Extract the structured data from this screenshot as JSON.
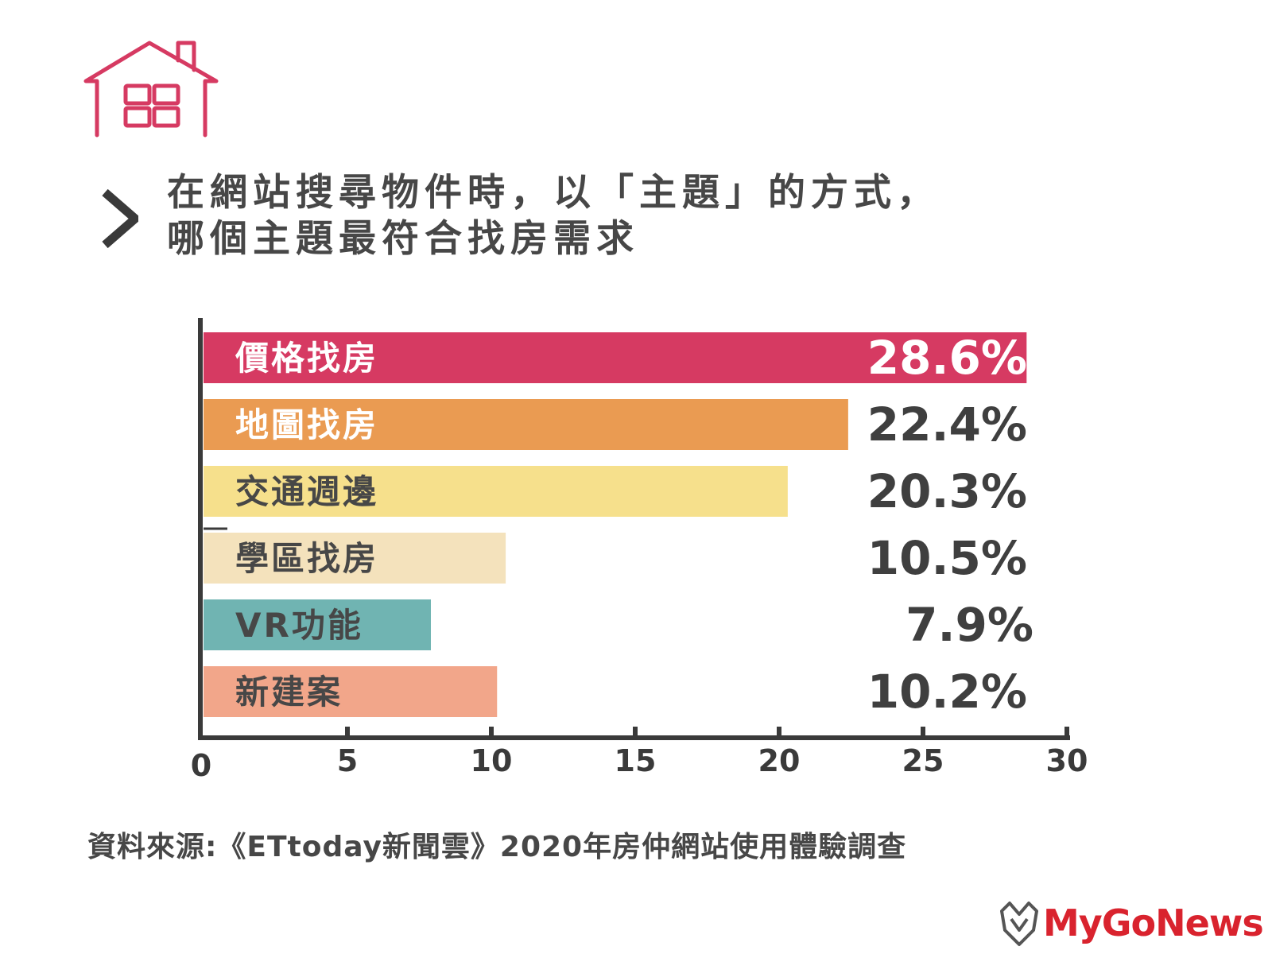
{
  "header": {
    "title_line1": "在網站搜尋物件時，以「主題」的方式，",
    "title_line2": "哪個主題最符合找房需求",
    "icons": [
      "house-icon",
      "chevron-right-icon"
    ],
    "accent_color": "#d63a62"
  },
  "chart_data": {
    "type": "bar",
    "orientation": "horizontal",
    "title": "",
    "xlabel": "",
    "ylabel": "",
    "categories": [
      "價格找房",
      "地圖找房",
      "交通週邊",
      "學區找房",
      "VR功能",
      "新建案"
    ],
    "values": [
      28.6,
      22.4,
      20.3,
      10.5,
      7.9,
      10.2
    ],
    "value_labels": [
      "28.6%",
      "22.4%",
      "20.3%",
      "10.5%",
      "7.9%",
      "10.2%"
    ],
    "colors": [
      "#d63a62",
      "#ea9b52",
      "#f6e08c",
      "#f4e2bc",
      "#70b4b2",
      "#f2a68a"
    ],
    "xlim": [
      0,
      30
    ],
    "xticks": [
      0,
      5,
      10,
      15,
      20,
      25,
      30
    ],
    "grid": false,
    "legend": "none"
  },
  "footer": {
    "source": "資料來源:《ETtoday新聞雲》2020年房仲網站使用體驗調查",
    "brand": "MyGoNews",
    "brand_color": "#d9232e"
  }
}
